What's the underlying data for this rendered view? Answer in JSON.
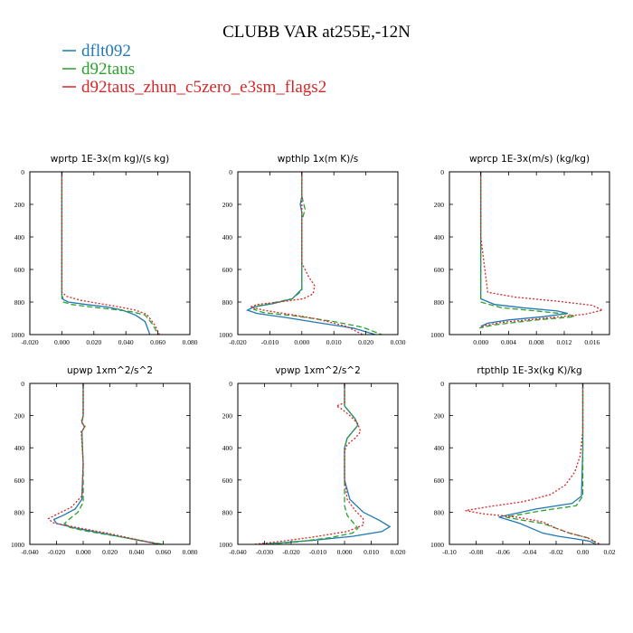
{
  "title": "CLUBB VAR at255E,-12N",
  "legend": [
    {
      "label": "dflt092",
      "color": "#1f77b4",
      "dash": ""
    },
    {
      "label": "d92taus",
      "color": "#2ca02c",
      "dash": "6,3"
    },
    {
      "label": "d92taus_zhun_c5zero_e3sm_flags2",
      "color": "#d62728",
      "dash": "2,2"
    }
  ],
  "chart_data": [
    {
      "type": "line",
      "title": "wprtp  1E-3x(m kg)/(s kg)",
      "xlim": [
        -0.02,
        0.08
      ],
      "ylim": [
        0,
        1000
      ],
      "y_inverted": true,
      "xticks": [
        "-0.020",
        "0.000",
        "0.020",
        "0.040",
        "0.060",
        "0.080"
      ],
      "xtick_values": [
        -0.02,
        0.0,
        0.02,
        0.04,
        0.06,
        0.08
      ],
      "yticks": [
        0,
        200,
        400,
        600,
        800,
        1000
      ],
      "series": [
        {
          "name": "dflt092",
          "x": [
            0,
            0,
            0,
            0,
            0,
            0.001,
            0.004,
            0.015,
            0.028,
            0.038,
            0.046,
            0.052,
            0.055
          ],
          "y": [
            0,
            200,
            400,
            600,
            760,
            785,
            800,
            815,
            830,
            850,
            880,
            920,
            1000
          ]
        },
        {
          "name": "d92taus",
          "x": [
            0,
            0,
            0,
            0,
            0,
            0.001,
            0.006,
            0.018,
            0.032,
            0.044,
            0.052,
            0.057,
            0.06
          ],
          "y": [
            0,
            200,
            400,
            600,
            780,
            800,
            815,
            830,
            845,
            860,
            880,
            940,
            1000
          ]
        },
        {
          "name": "d92taus_zhun_c5zero_e3sm_flags2",
          "x": [
            0,
            0,
            0,
            0,
            0,
            0.003,
            0.012,
            0.024,
            0.036,
            0.046,
            0.053,
            0.058,
            0.061
          ],
          "y": [
            0,
            200,
            400,
            600,
            740,
            765,
            790,
            810,
            830,
            850,
            875,
            940,
            1000
          ]
        }
      ]
    },
    {
      "type": "line",
      "title": "wpthlp  1x(m K)/s",
      "xlim": [
        -0.02,
        0.03
      ],
      "ylim": [
        0,
        1000
      ],
      "y_inverted": true,
      "xticks": [
        "-0.020",
        "-0.010",
        "0.000",
        "0.010",
        "0.020",
        "0.030"
      ],
      "xtick_values": [
        -0.02,
        -0.01,
        0.0,
        0.01,
        0.02,
        0.03
      ],
      "yticks": [
        0,
        200,
        400,
        600,
        800,
        1000
      ],
      "series": [
        {
          "name": "dflt092",
          "x": [
            0,
            0,
            -0.0005,
            0,
            0,
            0,
            -0.003,
            -0.009,
            -0.015,
            -0.017,
            -0.014,
            -0.005,
            0.006,
            0.016,
            0.023
          ],
          "y": [
            0,
            150,
            200,
            250,
            500,
            720,
            780,
            810,
            830,
            850,
            870,
            895,
            930,
            960,
            1000
          ]
        },
        {
          "name": "d92taus",
          "x": [
            0,
            0,
            0.001,
            0,
            0,
            0,
            -0.003,
            -0.009,
            -0.014,
            -0.015,
            -0.012,
            -0.002,
            0.01,
            0.019,
            0.025
          ],
          "y": [
            0,
            150,
            230,
            300,
            500,
            730,
            780,
            805,
            825,
            845,
            865,
            885,
            920,
            955,
            1000
          ]
        },
        {
          "name": "d92taus_zhun_c5zero_e3sm_flags2",
          "x": [
            0,
            0,
            0,
            0,
            0.002,
            0.004,
            0.0035,
            0.0005,
            -0.007,
            -0.014,
            -0.016,
            -0.012,
            -0.004,
            0.005,
            0.014,
            0.019
          ],
          "y": [
            0,
            200,
            400,
            560,
            640,
            700,
            750,
            780,
            800,
            815,
            830,
            850,
            875,
            905,
            950,
            1000
          ]
        }
      ]
    },
    {
      "type": "line",
      "title": "wprcp  1E-3x(m/s) (kg/kg)",
      "xlim": [
        -0.0045,
        0.0185
      ],
      "ylim": [
        0,
        1000
      ],
      "y_inverted": true,
      "xticks": [
        "0.000",
        "0.004",
        "0.008",
        "0.012",
        "0.016"
      ],
      "xtick_values": [
        0.0,
        0.004,
        0.008,
        0.012,
        0.016
      ],
      "yticks": [
        0,
        200,
        400,
        600,
        800,
        1000
      ],
      "series": [
        {
          "name": "dflt092",
          "x": [
            0,
            0,
            0,
            0,
            0,
            0.002,
            0.006,
            0.011,
            0.0125,
            0.009,
            0.004,
            0.001,
            0
          ],
          "y": [
            0,
            200,
            400,
            600,
            780,
            815,
            835,
            855,
            870,
            890,
            910,
            930,
            950
          ]
        },
        {
          "name": "d92taus",
          "x": [
            0,
            0,
            0,
            0,
            0,
            0.003,
            0.008,
            0.0125,
            0.0135,
            0.008,
            0.002,
            -0.0002
          ],
          "y": [
            0,
            200,
            400,
            600,
            800,
            835,
            855,
            875,
            890,
            910,
            940,
            960
          ]
        },
        {
          "name": "d92taus_zhun_c5zero_e3sm_flags2",
          "x": [
            0,
            0,
            0,
            0.001,
            0.005,
            0.011,
            0.016,
            0.0175,
            0.015,
            0.009,
            0.003,
            0.0005,
            0
          ],
          "y": [
            0,
            200,
            400,
            740,
            770,
            795,
            820,
            850,
            875,
            900,
            925,
            945,
            960
          ]
        }
      ]
    },
    {
      "type": "line",
      "title": "upwp  1xm^2/s^2",
      "xlim": [
        -0.04,
        0.08
      ],
      "ylim": [
        0,
        1000
      ],
      "y_inverted": true,
      "xticks": [
        "-0.040",
        "-0.020",
        "0.000",
        "0.020",
        "0.040",
        "0.060",
        "0.080"
      ],
      "xtick_values": [
        -0.04,
        -0.02,
        0.0,
        0.02,
        0.04,
        0.06,
        0.08
      ],
      "yticks": [
        0,
        200,
        400,
        600,
        800,
        1000
      ],
      "series": [
        {
          "name": "dflt092",
          "x": [
            0,
            0,
            -0.001,
            0.001,
            -0.001,
            0,
            -0.001,
            -0.006,
            -0.015,
            -0.022,
            -0.02,
            -0.005,
            0.02,
            0.042,
            0.058
          ],
          "y": [
            0,
            200,
            240,
            270,
            300,
            500,
            720,
            780,
            820,
            845,
            870,
            900,
            940,
            975,
            1000
          ]
        },
        {
          "name": "d92taus",
          "x": [
            0,
            0,
            -0.001,
            0.001,
            -0.001,
            0,
            0,
            -0.004,
            -0.01,
            -0.014,
            -0.01,
            0.004,
            0.026,
            0.046,
            0.06
          ],
          "y": [
            0,
            200,
            240,
            270,
            300,
            500,
            740,
            800,
            840,
            870,
            895,
            920,
            950,
            980,
            1000
          ]
        },
        {
          "name": "d92taus_zhun_c5zero_e3sm_flags2",
          "x": [
            0,
            0,
            -0.0015,
            0.0015,
            -0.0015,
            0,
            -0.001,
            -0.009,
            -0.019,
            -0.026,
            -0.023,
            -0.008,
            0.018,
            0.04,
            0.057
          ],
          "y": [
            0,
            200,
            240,
            270,
            300,
            500,
            700,
            770,
            810,
            840,
            865,
            890,
            930,
            970,
            1000
          ]
        }
      ]
    },
    {
      "type": "line",
      "title": "vpwp  1xm^2/s^2",
      "xlim": [
        -0.04,
        0.02
      ],
      "ylim": [
        0,
        1000
      ],
      "y_inverted": true,
      "xticks": [
        "-0.040",
        "-0.030",
        "-0.020",
        "-0.010",
        "0.000",
        "0.010",
        "0.020"
      ],
      "xtick_values": [
        -0.04,
        -0.03,
        -0.02,
        -0.01,
        0.0,
        0.01,
        0.02
      ],
      "yticks": [
        0,
        200,
        400,
        600,
        800,
        1000
      ],
      "series": [
        {
          "name": "dflt092",
          "x": [
            0,
            0,
            0.002,
            0.004,
            0.005,
            0.003,
            0.001,
            0,
            0,
            0.002,
            0.007,
            0.013,
            0.017,
            0.014,
            0.003,
            -0.012,
            -0.024,
            -0.032
          ],
          "y": [
            0,
            140,
            180,
            220,
            260,
            300,
            340,
            400,
            600,
            720,
            800,
            850,
            890,
            920,
            950,
            975,
            990,
            1000
          ]
        },
        {
          "name": "d92taus",
          "x": [
            0,
            0,
            0.002,
            0.004,
            0.005,
            0.003,
            0.001,
            0,
            0,
            0,
            0.001,
            0.003,
            0.005,
            0.003,
            -0.006,
            -0.018,
            -0.03
          ],
          "y": [
            0,
            140,
            180,
            220,
            260,
            300,
            340,
            400,
            600,
            760,
            820,
            860,
            900,
            930,
            960,
            985,
            1000
          ]
        },
        {
          "name": "d92taus_zhun_c5zero_e3sm_flags2",
          "x": [
            0,
            0,
            -0.003,
            -0.001,
            0.002,
            0.005,
            0.006,
            0.004,
            0.001,
            0,
            0,
            0.001,
            0.004,
            0.007,
            0.007,
            0.001,
            -0.012,
            -0.026,
            -0.034
          ],
          "y": [
            0,
            120,
            140,
            160,
            200,
            250,
            300,
            340,
            380,
            420,
            600,
            720,
            790,
            840,
            880,
            920,
            955,
            985,
            1000
          ]
        }
      ]
    },
    {
      "type": "line",
      "title": "rtpthlp  1E-3x(kg K)/kg",
      "xlim": [
        -0.1,
        0.02
      ],
      "ylim": [
        0,
        1000
      ],
      "y_inverted": true,
      "xticks": [
        "-0.10",
        "-0.08",
        "-0.06",
        "-0.04",
        "-0.02",
        "0.00",
        "0.02"
      ],
      "xtick_values": [
        -0.1,
        -0.08,
        -0.06,
        -0.04,
        -0.02,
        0.0,
        0.02
      ],
      "yticks": [
        0,
        200,
        400,
        600,
        800,
        1000
      ],
      "series": [
        {
          "name": "dflt092",
          "x": [
            0,
            0,
            0,
            -0.001,
            -0.008,
            -0.035,
            -0.063,
            -0.055,
            -0.047,
            -0.04,
            -0.03,
            -0.018,
            -0.006,
            0.005,
            0.01
          ],
          "y": [
            0,
            200,
            400,
            700,
            745,
            780,
            830,
            850,
            870,
            895,
            930,
            950,
            965,
            980,
            1000
          ]
        },
        {
          "name": "d92taus",
          "x": [
            0,
            0,
            0,
            0,
            -0.005,
            -0.03,
            -0.058,
            -0.045,
            -0.03,
            -0.02,
            -0.01,
            0.004,
            0.012
          ],
          "y": [
            0,
            200,
            400,
            700,
            760,
            790,
            830,
            850,
            870,
            900,
            930,
            960,
            1000
          ]
        },
        {
          "name": "d92taus_zhun_c5zero_e3sm_flags2",
          "x": [
            0,
            0,
            -0.002,
            -0.006,
            -0.013,
            -0.024,
            -0.045,
            -0.07,
            -0.088,
            -0.075,
            -0.05,
            -0.03,
            -0.02,
            -0.01,
            0.004,
            0.013
          ],
          "y": [
            0,
            300,
            450,
            550,
            630,
            690,
            735,
            765,
            790,
            810,
            830,
            860,
            900,
            930,
            960,
            1000
          ]
        }
      ]
    }
  ]
}
